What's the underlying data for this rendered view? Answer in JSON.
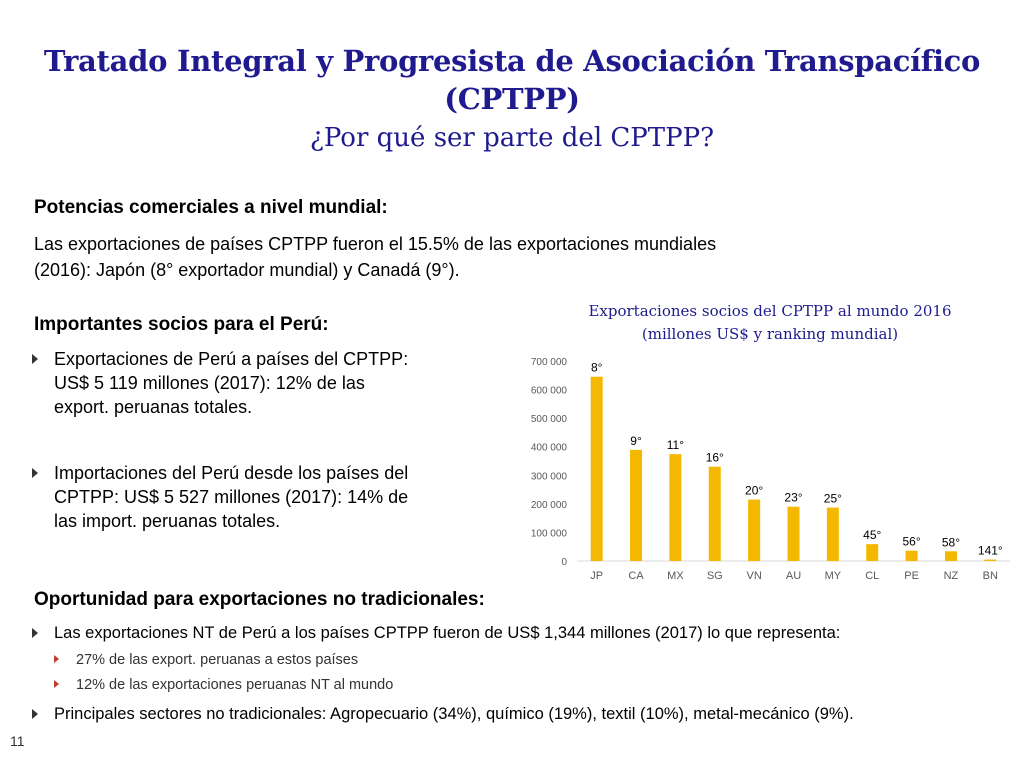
{
  "slide": {
    "title_line1": "Tratado Integral y Progresista de Asociación Transpacífico",
    "title_line2": "(CPTPP)",
    "subtitle": "¿Por qué ser parte del CPTPP?",
    "page_number": "11"
  },
  "section1": {
    "heading": "Potencias comerciales a nivel mundial:",
    "text_line1": "Las exportaciones de países CPTPP fueron el 15.5% de las exportaciones mundiales",
    "text_line2": "(2016): Japón (8° exportador mundial) y Canadá (9°)."
  },
  "section2": {
    "heading": "Importantes socios para el Perú:",
    "bullets": [
      {
        "lines": [
          "Exportaciones de Perú a países del CPTPP:",
          "US$ 5 119 millones (2017): 12% de las",
          "export. peruanas totales."
        ]
      },
      {
        "lines": [
          "Importaciones del Perú desde los países del",
          "CPTPP: US$ 5 527 millones (2017): 14% de",
          "las import. peruanas totales."
        ]
      }
    ]
  },
  "section3": {
    "heading": "Oportunidad para exportaciones no tradicionales:",
    "bullet1": "Las exportaciones NT de Perú a los países CPTPP fueron de US$ 1,344 millones (2017) lo que representa:",
    "sub_bullets": [
      "27% de las export. peruanas a estos países",
      "12% de las exportaciones peruanas NT al mundo"
    ],
    "bullet2": "Principales sectores no tradicionales: Agropecuario (34%), químico (19%), textil (10%), metal-mecánico (9%)."
  },
  "chart_data": {
    "type": "bar",
    "title_line1": "Exportaciones socios del CPTPP al mundo 2016",
    "title_line2": "(millones US$ y ranking mundial)",
    "categories": [
      "JP",
      "CA",
      "MX",
      "SG",
      "VN",
      "AU",
      "MY",
      "CL",
      "PE",
      "NZ",
      "BN"
    ],
    "values": [
      645000,
      389000,
      374000,
      330000,
      215000,
      190000,
      187000,
      59000,
      36000,
      34000,
      5000
    ],
    "data_labels": [
      "8°",
      "9°",
      "11°",
      "16°",
      "20°",
      "23°",
      "25°",
      "45°",
      "56°",
      "58°",
      "141°"
    ],
    "ylim": [
      0,
      700000
    ],
    "yticks": [
      0,
      100000,
      200000,
      300000,
      400000,
      500000,
      600000,
      700000
    ],
    "ytick_labels": [
      "0",
      "100 000",
      "200 000",
      "300 000",
      "400 000",
      "500 000",
      "600 000",
      "700 000"
    ],
    "bar_color": "#f5b800",
    "grid": false
  },
  "colors": {
    "title": "#1f1b8f",
    "bar": "#f5b800",
    "axis_text": "#595959"
  }
}
